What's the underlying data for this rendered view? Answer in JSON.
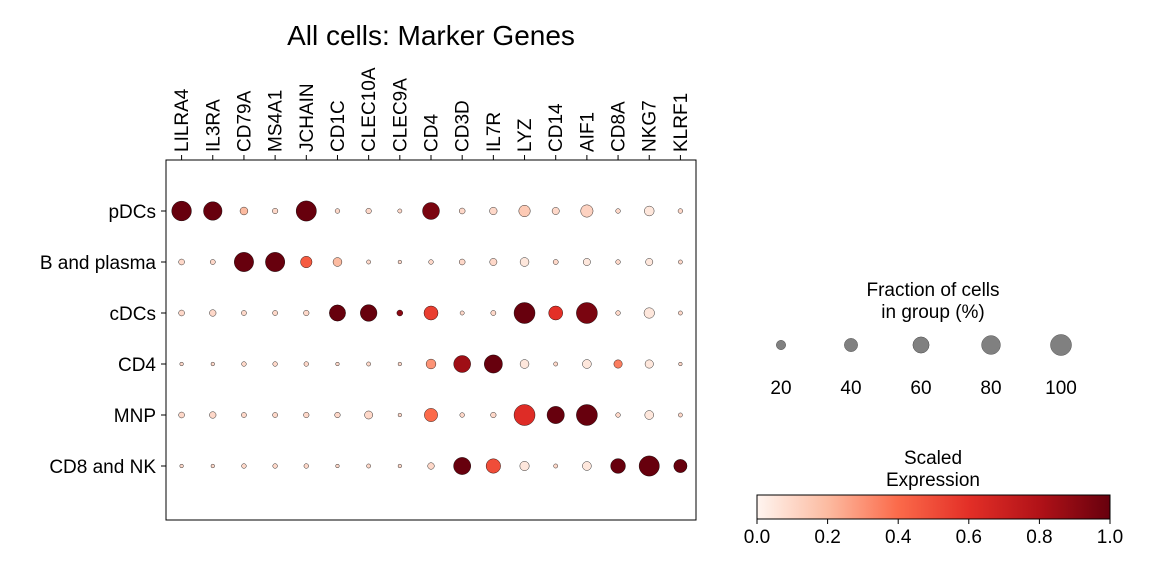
{
  "chart_data": {
    "type": "dotplot",
    "title": "All cells: Marker Genes",
    "genes": [
      "LILRA4",
      "IL3RA",
      "CD79A",
      "MS4A1",
      "JCHAIN",
      "CD1C",
      "CLEC10A",
      "CLEC9A",
      "CD4",
      "CD3D",
      "IL7R",
      "LYZ",
      "CD14",
      "AIF1",
      "CD8A",
      "NKG7",
      "KLRF1"
    ],
    "groups": [
      "pDCs",
      "B and plasma",
      "cDCs",
      "CD4",
      "MNP",
      "CD8 and NK"
    ],
    "fraction_pct": [
      [
        88,
        78,
        14,
        7,
        93,
        5,
        7,
        4,
        65,
        8,
        13,
        30,
        12,
        35,
        5,
        22,
        5
      ],
      [
        8,
        6,
        85,
        85,
        30,
        18,
        4,
        3,
        5,
        8,
        12,
        18,
        6,
        12,
        5,
        12,
        4
      ],
      [
        8,
        10,
        6,
        6,
        7,
        60,
        63,
        8,
        45,
        4,
        6,
        100,
        45,
        100,
        5,
        25,
        4
      ],
      [
        3,
        3,
        5,
        5,
        5,
        3,
        4,
        3,
        22,
        65,
        75,
        18,
        4,
        18,
        16,
        16,
        3
      ],
      [
        8,
        10,
        6,
        6,
        7,
        7,
        15,
        3,
        40,
        5,
        7,
        100,
        68,
        100,
        5,
        18,
        4
      ],
      [
        3,
        3,
        5,
        5,
        5,
        3,
        4,
        3,
        10,
        67,
        48,
        20,
        4,
        18,
        50,
        93,
        40
      ]
    ],
    "scaled_expression": [
      [
        1.0,
        1.0,
        0.2,
        0.1,
        1.0,
        0.1,
        0.1,
        0.1,
        0.95,
        0.1,
        0.1,
        0.15,
        0.1,
        0.12,
        0.1,
        0.05,
        0.1
      ],
      [
        0.1,
        0.1,
        1.0,
        1.0,
        0.45,
        0.2,
        0.1,
        0.1,
        0.1,
        0.1,
        0.1,
        0.05,
        0.1,
        0.05,
        0.1,
        0.05,
        0.1
      ],
      [
        0.1,
        0.1,
        0.1,
        0.1,
        0.1,
        1.0,
        1.0,
        0.9,
        0.55,
        0.1,
        0.1,
        1.0,
        0.6,
        0.95,
        0.1,
        0.05,
        0.1
      ],
      [
        0.1,
        0.1,
        0.1,
        0.1,
        0.1,
        0.1,
        0.1,
        0.1,
        0.3,
        0.85,
        1.0,
        0.05,
        0.1,
        0.05,
        0.35,
        0.05,
        0.1
      ],
      [
        0.1,
        0.1,
        0.1,
        0.1,
        0.1,
        0.1,
        0.1,
        0.1,
        0.4,
        0.1,
        0.1,
        0.62,
        1.0,
        1.0,
        0.1,
        0.05,
        0.1
      ],
      [
        0.1,
        0.1,
        0.1,
        0.1,
        0.1,
        0.1,
        0.1,
        0.1,
        0.1,
        1.0,
        0.5,
        0.05,
        0.1,
        0.05,
        1.0,
        1.0,
        1.0
      ]
    ],
    "size_legend": {
      "title_line1": "Fraction of cells",
      "title_line2": "in group (%)",
      "values": [
        20,
        40,
        60,
        80,
        100
      ]
    },
    "color_legend": {
      "title_line1": "Scaled",
      "title_line2": "Expression",
      "range": [
        0.0,
        1.0
      ],
      "tick_labels": [
        "0.0",
        "0.2",
        "0.4",
        "0.6",
        "0.8",
        "1.0"
      ],
      "colormap": "Reds",
      "colors": [
        "#fff5f0",
        "#fcbba1",
        "#fb6a4a",
        "#e32f27",
        "#b11218",
        "#67000d"
      ]
    },
    "legend_dot_color": "#808080"
  }
}
